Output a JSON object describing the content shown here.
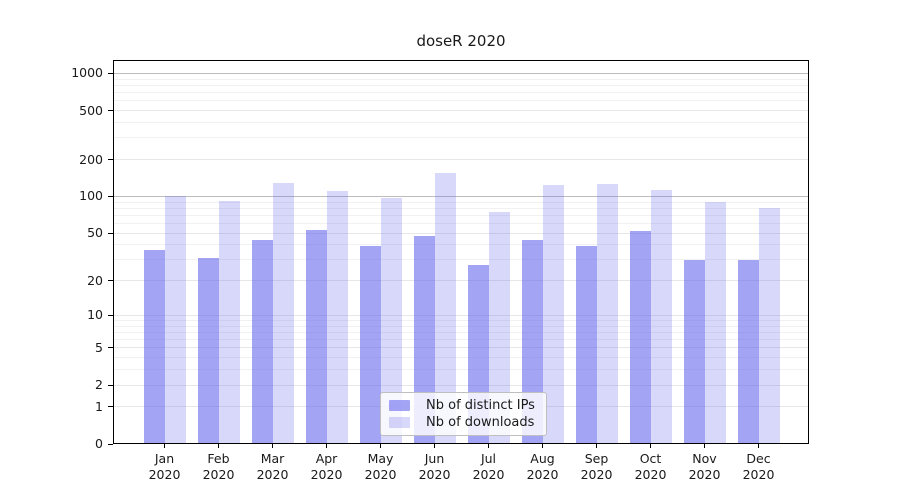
{
  "chart_data": {
    "type": "bar",
    "title": "doseR 2020",
    "categories": [
      "Jan",
      "Feb",
      "Mar",
      "Apr",
      "May",
      "Jun",
      "Jul",
      "Aug",
      "Sep",
      "Oct",
      "Nov",
      "Dec"
    ],
    "x_year_line": "2020",
    "series": [
      {
        "name": "Nb of distinct IPs",
        "fill": "rgba(99,99,237,0.58)",
        "solid_color": "#a4a4f4",
        "values": [
          36,
          31,
          44,
          53,
          39,
          47,
          27,
          44,
          39,
          52,
          30,
          30
        ]
      },
      {
        "name": "Nb of downloads",
        "fill": "rgba(99,99,237,0.25)",
        "solid_color": "#d9d9fa",
        "values": [
          100,
          92,
          128,
          110,
          97,
          155,
          74,
          125,
          126,
          113,
          90,
          80
        ]
      }
    ],
    "y_axis": {
      "scale": "log-like (log10 of value+1), 0 at baseline",
      "tick_labels": [
        0,
        1,
        2,
        5,
        10,
        20,
        50,
        100,
        200,
        500,
        1000
      ],
      "minor_gridlines": [
        3,
        4,
        6,
        7,
        8,
        9,
        30,
        40,
        60,
        70,
        80,
        90,
        300,
        400,
        600,
        700,
        800,
        900
      ],
      "top_value": 1270
    },
    "legend": {
      "entries": [
        "Nb of distinct IPs",
        "Nb of downloads"
      ],
      "location": "lower center"
    },
    "grid": true,
    "colors": {
      "bar_base": "#6363ed",
      "major_gridline": "#bdbdbd",
      "labeled_gridline": "#e7e7e7",
      "minor_gridline": "#f1f1f1",
      "spine": "#000000",
      "text": "#1a1a1a"
    }
  }
}
